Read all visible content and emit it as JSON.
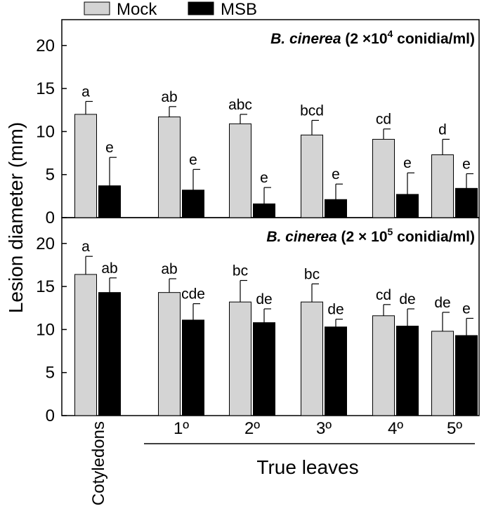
{
  "legend": {
    "mock_label": "Mock",
    "msb_label": "MSB"
  },
  "colors": {
    "mock": "#d4d4d4",
    "msb": "#000000",
    "axis": "#000000"
  },
  "ylabel": "Lesion diameter (mm)",
  "group_label": "True leaves",
  "categories": [
    "Cotyledons",
    "1º",
    "2º",
    "3º",
    "4º",
    "5º"
  ],
  "chart_data": [
    {
      "type": "bar",
      "title": {
        "prefix": "B. cinerea",
        "conc": "(2 ×10",
        "exp": "4",
        "unit": " conidia/ml)"
      },
      "ylim": [
        0,
        23
      ],
      "yticks": [
        0,
        5,
        10,
        15,
        20
      ],
      "categories": [
        "Cotyledons",
        "1º",
        "2º",
        "3º",
        "4º",
        "5º"
      ],
      "series": [
        {
          "name": "Mock",
          "values": [
            12.0,
            11.7,
            10.9,
            9.6,
            9.1,
            7.3
          ],
          "errors": [
            1.5,
            1.2,
            1.1,
            1.7,
            1.2,
            1.8
          ],
          "letters": [
            "a",
            "ab",
            "abc",
            "bcd",
            "cd",
            "d"
          ]
        },
        {
          "name": "MSB",
          "values": [
            3.7,
            3.2,
            1.6,
            2.1,
            2.7,
            3.4
          ],
          "errors": [
            3.3,
            2.4,
            1.9,
            1.8,
            2.5,
            1.7
          ],
          "letters": [
            "e",
            "e",
            "e",
            "e",
            "e",
            "e"
          ]
        }
      ]
    },
    {
      "type": "bar",
      "title": {
        "prefix": "B. cinerea",
        "conc": "(2 × 10",
        "exp": "5",
        "unit": " conidia/ml)"
      },
      "ylim": [
        0,
        23
      ],
      "yticks": [
        0,
        5,
        10,
        15,
        20
      ],
      "categories": [
        "Cotyledons",
        "1º",
        "2º",
        "3º",
        "4º",
        "5º"
      ],
      "series": [
        {
          "name": "Mock",
          "values": [
            16.4,
            14.3,
            13.2,
            13.2,
            11.6,
            9.8
          ],
          "errors": [
            2.1,
            1.6,
            2.5,
            2.1,
            1.3,
            2.2
          ],
          "letters": [
            "a",
            "ab",
            "bc",
            "bc",
            "cd",
            "de"
          ]
        },
        {
          "name": "MSB",
          "values": [
            14.3,
            11.1,
            10.8,
            10.3,
            10.4,
            9.3
          ],
          "errors": [
            1.7,
            1.9,
            1.6,
            0.9,
            2.0,
            2.0
          ],
          "letters": [
            "ab",
            "cde",
            "de",
            "de",
            "de",
            "e"
          ]
        }
      ]
    }
  ]
}
